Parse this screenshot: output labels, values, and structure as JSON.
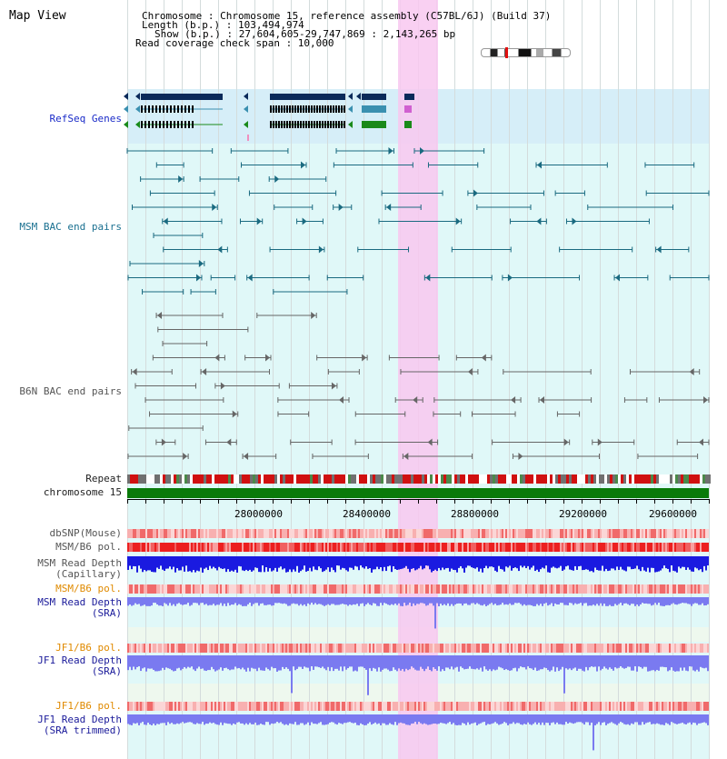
{
  "title": "Map View",
  "header": {
    "lines": [
      "Chromosome     : Chromosome 15, reference assembly (C57BL/6J) (Build 37)",
      "Length (b.p.) : 103,494,974",
      "Show (b.p.) : 27,604,605-29,747,869 : 2,143,265 bp",
      "Read coverage check span : 10,000"
    ]
  },
  "axis": {
    "ticks": [
      "28000000",
      "28400000",
      "28800000",
      "29200000",
      "29600000"
    ],
    "tick_values": [
      28000000,
      28400000,
      28800000,
      29200000,
      29600000
    ],
    "range": [
      27604605,
      29747869
    ]
  },
  "tracks": {
    "refseq": "RefSeq Genes",
    "msm_bac": "MSM BAC end pairs",
    "b6n_bac": "B6N BAC end pairs",
    "repeat": "Repeat",
    "chromosome": "chromosome 15",
    "dbsnp": "dbSNP(Mouse)",
    "msm_b6_pol_1": "MSM/B6 pol.",
    "msm_depth_cap_1": "MSM Read Depth",
    "msm_depth_cap_2": "(Capillary)",
    "msm_b6_pol_2": "MSM/B6 pol.",
    "msm_depth_sra_1": "MSM Read Depth",
    "msm_depth_sra_2": "(SRA)",
    "jf1_b6_pol_1": "JF1/B6 pol.",
    "jf1_depth_sra_1": "JF1 Read Depth",
    "jf1_depth_sra_2": "(SRA)",
    "jf1_b6_pol_2": "JF1/B6 pol.",
    "jf1_depth_trim_1": "JF1 Read Depth",
    "jf1_depth_trim_2": "(SRA trimmed)"
  },
  "colors": {
    "highlight": "#f8c8f0",
    "refseq_band": "#d6eef8",
    "track_band": "#e0f8f8",
    "gene_dark": "#0a2a5a",
    "gene_teal": "#3a90b0",
    "gene_green": "#1a8a1a",
    "msm_pair": "#1a6a80",
    "b6n_pair": "#666666",
    "chromosome": "#0a7a0a",
    "depth_dark": "#1a1ae0",
    "depth_light": "#7a7af0"
  }
}
